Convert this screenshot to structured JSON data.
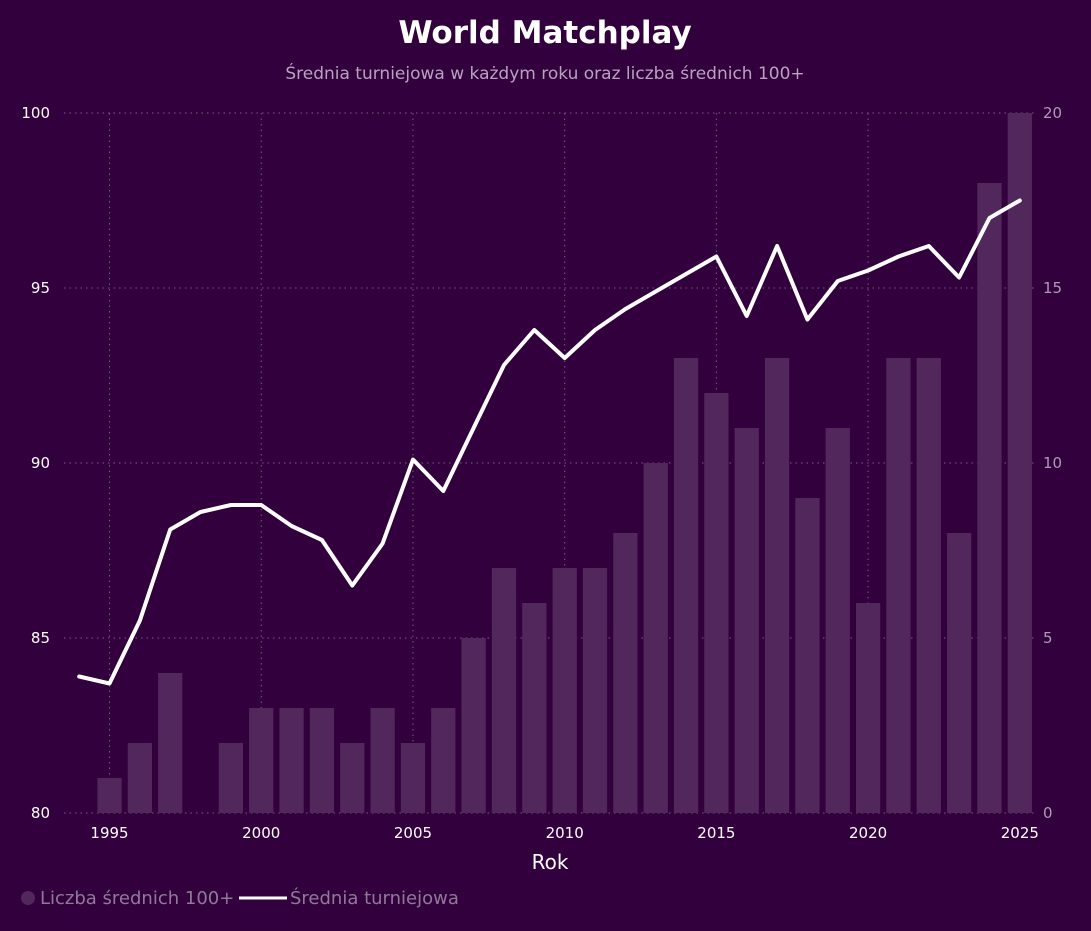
{
  "colors": {
    "background": "#32003c",
    "bars": "#52275c",
    "line": "#ffffff",
    "legend_dot": "#52275c"
  },
  "chart_data": {
    "type": "bar",
    "title": "World Matchplay",
    "subtitle": "Średnia turniejowa w każdym roku oraz liczba średnich 100+",
    "xlabel": "Rok",
    "x": [
      1994,
      1995,
      1996,
      1997,
      1998,
      1999,
      2000,
      2001,
      2002,
      2003,
      2004,
      2005,
      2006,
      2007,
      2008,
      2009,
      2010,
      2011,
      2012,
      2013,
      2014,
      2015,
      2016,
      2017,
      2018,
      2019,
      2020,
      2021,
      2022,
      2023,
      2024,
      2025
    ],
    "x_ticks": [
      1995,
      2000,
      2005,
      2010,
      2015,
      2020,
      2025
    ],
    "xlim": [
      1993.5,
      2025.5
    ],
    "y_left_lim": [
      80,
      100
    ],
    "y_left_ticks": [
      80,
      85,
      90,
      95,
      100
    ],
    "y_right_lim": [
      0,
      20
    ],
    "y_right_ticks": [
      0,
      5,
      10,
      15,
      20
    ],
    "grid": true,
    "legend_position": "bottom-left",
    "series": [
      {
        "name": "Liczba średnich 100+",
        "type": "bar",
        "axis": "right",
        "values": [
          0,
          1,
          2,
          4,
          0,
          2,
          3,
          3,
          3,
          2,
          3,
          2,
          3,
          5,
          7,
          6,
          7,
          7,
          8,
          10,
          13,
          12,
          11,
          13,
          9,
          11,
          6,
          13,
          13,
          8,
          18,
          20
        ]
      },
      {
        "name": "Średnia turniejowa",
        "type": "line",
        "axis": "left",
        "values": [
          83.9,
          83.7,
          85.5,
          88.1,
          88.6,
          88.8,
          88.8,
          88.2,
          87.8,
          86.5,
          87.7,
          90.1,
          89.2,
          91.0,
          92.8,
          93.8,
          93.0,
          93.8,
          94.4,
          94.9,
          95.4,
          95.9,
          94.2,
          96.2,
          94.1,
          95.2,
          95.5,
          95.9,
          96.2,
          95.3,
          97.0,
          97.5
        ]
      }
    ]
  }
}
